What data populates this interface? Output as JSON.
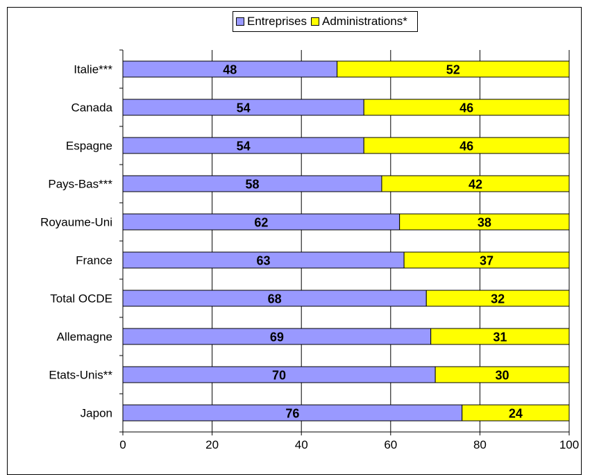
{
  "chart_data": {
    "type": "bar",
    "orientation": "horizontal",
    "stacked": true,
    "categories": [
      "Italie***",
      "Canada",
      "Espagne",
      "Pays-Bas***",
      "Royaume-Uni",
      "France",
      "Total OCDE",
      "Allemagne",
      "Etats-Unis**",
      "Japon"
    ],
    "series": [
      {
        "name": "Entreprises",
        "color": "#9999ff",
        "values": [
          48,
          54,
          54,
          58,
          62,
          63,
          68,
          69,
          70,
          76
        ]
      },
      {
        "name": "Administrations*",
        "color": "#ffff00",
        "values": [
          52,
          46,
          46,
          42,
          38,
          37,
          32,
          31,
          30,
          24
        ]
      }
    ],
    "xlim": [
      0,
      100
    ],
    "xticks": [
      0,
      20,
      40,
      60,
      80,
      100
    ],
    "grid": "vertical",
    "legend": "top-center"
  }
}
